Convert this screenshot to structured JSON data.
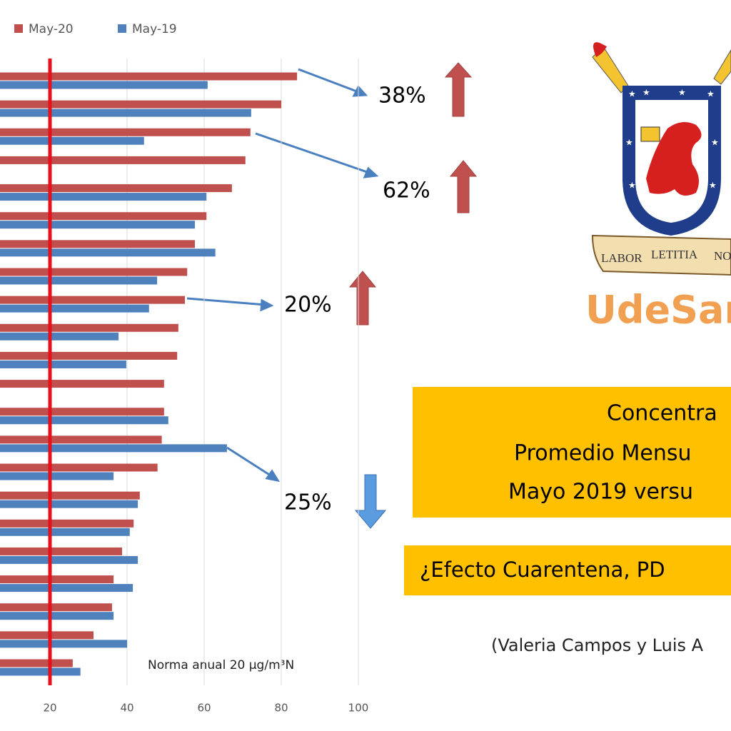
{
  "chart_data": {
    "type": "bar",
    "orientation": "horizontal",
    "categories": [
      null,
      null,
      null,
      null,
      null,
      null,
      null,
      null,
      null,
      null,
      null,
      null,
      null,
      null,
      null,
      null,
      null,
      null,
      null,
      null,
      null,
      null
    ],
    "series": [
      {
        "name": "May-20",
        "color": "#c0504d",
        "values": [
          84.1,
          80,
          72,
          70.7,
          67.2,
          60.6,
          57.6,
          55.6,
          55,
          53.3,
          53,
          49.6,
          49.6,
          49,
          47.9,
          43.3,
          41.7,
          38.7,
          36.5,
          36.1,
          31.3,
          25.9
        ]
      },
      {
        "name": "May-19",
        "color": "#4f81bd",
        "values": [
          60.9,
          72.2,
          44.4,
          null,
          60.6,
          57.6,
          62.9,
          47.8,
          45.7,
          37.8,
          39.8,
          null,
          50.7,
          65.9,
          36.5,
          42.8,
          40.7,
          42.8,
          41.5,
          36.5,
          40,
          27.9
        ]
      }
    ],
    "xlim": [
      0,
      100
    ],
    "xticks": [
      20,
      40,
      60,
      80,
      100
    ],
    "grid": true,
    "reference_line": {
      "value": 20,
      "color": "#e8101a"
    },
    "annotations": [
      "38%",
      "62%",
      "20%",
      "25%",
      "Norma anual 20 µg/m³N"
    ]
  },
  "slide": {
    "logo_motto": [
      "LABOR",
      "LETITIA",
      "NO"
    ],
    "logo_text": "UdeSantia",
    "title_lines": [
      "Concentra",
      "Promedio Mensu",
      "Mayo 2019 versu"
    ],
    "question": "¿Efecto Cuarentena, PD",
    "credit": "(Valeria Campos y Luis A"
  }
}
